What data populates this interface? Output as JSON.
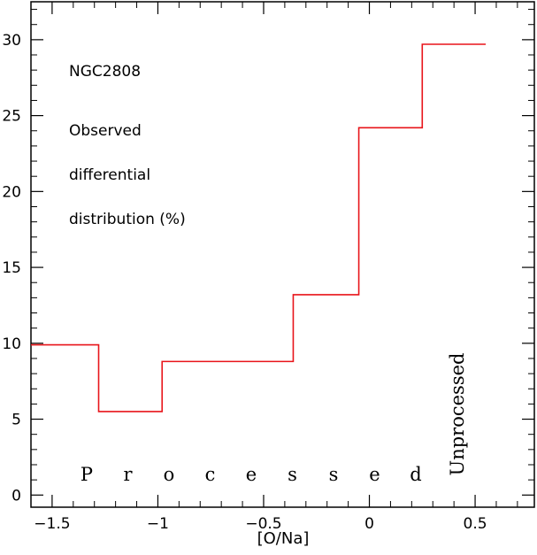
{
  "chart_data": {
    "type": "line",
    "step": true,
    "title": "",
    "xlabel": "[O/Na]",
    "ylabel": "",
    "xlim": [
      -1.6,
      0.78
    ],
    "ylim": [
      -0.8,
      32.5
    ],
    "xticks": [
      -1.5,
      -1,
      -0.5,
      0,
      0.5
    ],
    "xtick_labels": [
      "−1.5",
      "−1",
      "−0.5",
      "0",
      "0.5"
    ],
    "yticks": [
      0,
      5,
      10,
      15,
      20,
      25,
      30
    ],
    "ytick_labels": [
      "0",
      "5",
      "10",
      "15",
      "20",
      "25",
      "30"
    ],
    "series": [
      {
        "color": "#e8141a",
        "bins": [
          {
            "x0": -1.6,
            "x1": -1.28,
            "y": 9.9
          },
          {
            "x0": -1.28,
            "x1": -0.98,
            "y": 5.5
          },
          {
            "x0": -0.98,
            "x1": -0.36,
            "y": 8.8
          },
          {
            "x0": -0.36,
            "x1": -0.05,
            "y": 13.2
          },
          {
            "x0": -0.05,
            "x1": 0.25,
            "y": 24.2
          },
          {
            "x0": 0.25,
            "x1": 0.55,
            "y": 29.7
          }
        ]
      }
    ],
    "annotations": {
      "cluster": "NGC2808",
      "line1": "Observed",
      "line2": "differential",
      "line3": "distribution (%)",
      "processed_letters": [
        "P",
        "r",
        "o",
        "c",
        "e",
        "s",
        "s",
        "e",
        "d"
      ],
      "unprocessed": "Unprocessed"
    }
  }
}
